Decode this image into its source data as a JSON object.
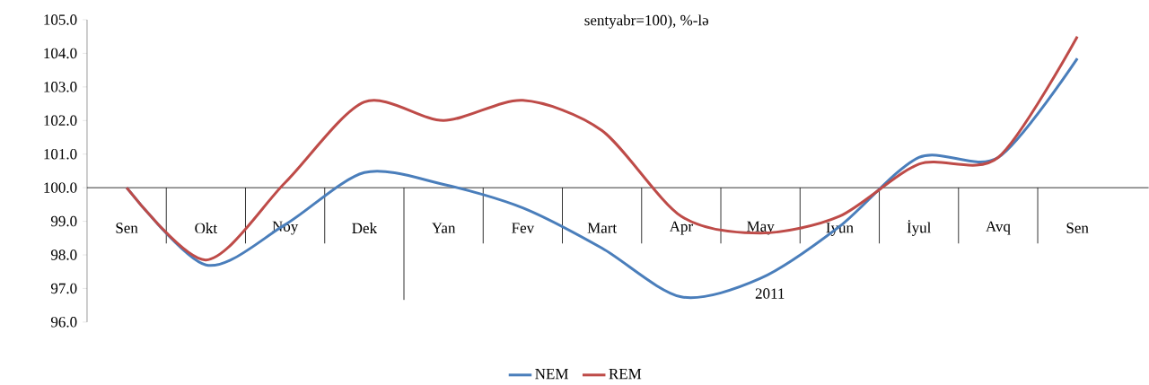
{
  "chart_data": {
    "type": "line",
    "title": "sentyabr=100), %-lə",
    "categories": [
      "Sen",
      "Okt",
      "Noy",
      "Dek",
      "Yan",
      "Fev",
      "Mart",
      "Apr",
      "May",
      "İyun",
      "İyul",
      "Avq",
      "Sen"
    ],
    "series": [
      {
        "name": "NEM",
        "color": "#4a7ebb",
        "values": [
          100.0,
          97.7,
          98.9,
          100.45,
          100.1,
          99.4,
          98.2,
          96.75,
          97.3,
          98.85,
          100.9,
          100.9,
          103.85
        ]
      },
      {
        "name": "REM",
        "color": "#be4b48",
        "values": [
          100.0,
          97.85,
          100.15,
          102.55,
          102.0,
          102.6,
          101.7,
          99.15,
          98.65,
          99.15,
          100.7,
          100.9,
          104.5
        ]
      }
    ],
    "ylim": [
      96,
      105
    ],
    "yticks": [
      {
        "value": 96,
        "label": "96.0"
      },
      {
        "value": 97,
        "label": "97.0"
      },
      {
        "value": 98,
        "label": "98.0"
      },
      {
        "value": 99,
        "label": "99.0"
      },
      {
        "value": 100,
        "label": "100.0"
      },
      {
        "value": 101,
        "label": "101.0"
      },
      {
        "value": 102,
        "label": "102.0"
      },
      {
        "value": 103,
        "label": "103.0"
      },
      {
        "value": 104,
        "label": "104.0"
      },
      {
        "value": 105,
        "label": "105.0"
      }
    ],
    "annotations": [
      "2011"
    ],
    "legend": "bottom"
  }
}
